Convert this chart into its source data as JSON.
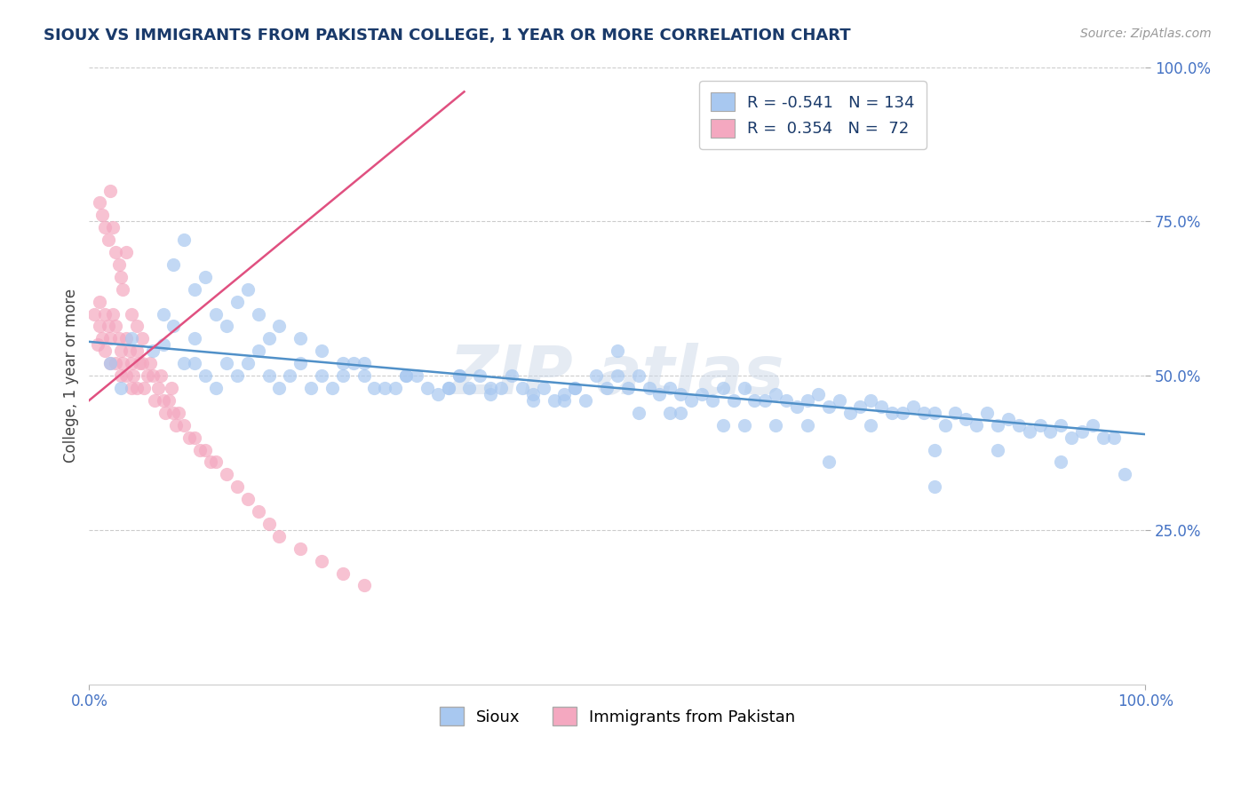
{
  "title": "SIOUX VS IMMIGRANTS FROM PAKISTAN COLLEGE, 1 YEAR OR MORE CORRELATION CHART",
  "source_text": "Source: ZipAtlas.com",
  "ylabel": "College, 1 year or more",
  "xmin": 0.0,
  "xmax": 1.0,
  "ymin": 0.0,
  "ymax": 1.0,
  "ytick_positions": [
    0.25,
    0.5,
    0.75,
    1.0
  ],
  "legend_R_sioux": "-0.541",
  "legend_N_sioux": "134",
  "legend_R_pak": "0.354",
  "legend_N_pak": "72",
  "sioux_color": "#a8c8f0",
  "pak_color": "#f4a8c0",
  "sioux_line_color": "#5090c8",
  "pak_line_color": "#e05080",
  "background_color": "#ffffff",
  "sioux_line_y_start": 0.555,
  "sioux_line_y_end": 0.405,
  "pak_line_x_start": 0.0,
  "pak_line_x_end": 0.355,
  "pak_line_y_start": 0.46,
  "pak_line_y_end": 0.96,
  "sioux_x": [
    0.02,
    0.03,
    0.04,
    0.06,
    0.07,
    0.07,
    0.08,
    0.09,
    0.1,
    0.1,
    0.11,
    0.12,
    0.13,
    0.14,
    0.15,
    0.16,
    0.17,
    0.18,
    0.19,
    0.2,
    0.21,
    0.22,
    0.23,
    0.24,
    0.25,
    0.26,
    0.27,
    0.28,
    0.29,
    0.3,
    0.31,
    0.32,
    0.33,
    0.34,
    0.35,
    0.36,
    0.37,
    0.38,
    0.39,
    0.4,
    0.41,
    0.42,
    0.43,
    0.44,
    0.45,
    0.46,
    0.47,
    0.48,
    0.49,
    0.5,
    0.51,
    0.52,
    0.53,
    0.54,
    0.55,
    0.56,
    0.57,
    0.58,
    0.59,
    0.6,
    0.61,
    0.62,
    0.63,
    0.64,
    0.65,
    0.66,
    0.67,
    0.68,
    0.69,
    0.7,
    0.71,
    0.72,
    0.73,
    0.74,
    0.75,
    0.76,
    0.77,
    0.78,
    0.79,
    0.8,
    0.81,
    0.82,
    0.83,
    0.84,
    0.85,
    0.86,
    0.87,
    0.88,
    0.89,
    0.9,
    0.91,
    0.92,
    0.93,
    0.94,
    0.95,
    0.96,
    0.97,
    0.98,
    0.08,
    0.09,
    0.1,
    0.11,
    0.12,
    0.13,
    0.14,
    0.15,
    0.16,
    0.17,
    0.18,
    0.2,
    0.22,
    0.24,
    0.26,
    0.3,
    0.34,
    0.38,
    0.42,
    0.46,
    0.52,
    0.56,
    0.62,
    0.68,
    0.74,
    0.8,
    0.86,
    0.92,
    0.5,
    0.6,
    0.7,
    0.8,
    0.35,
    0.45,
    0.55,
    0.65
  ],
  "sioux_y": [
    0.52,
    0.48,
    0.56,
    0.54,
    0.6,
    0.55,
    0.58,
    0.52,
    0.56,
    0.52,
    0.5,
    0.48,
    0.52,
    0.5,
    0.52,
    0.54,
    0.5,
    0.48,
    0.5,
    0.52,
    0.48,
    0.5,
    0.48,
    0.5,
    0.52,
    0.5,
    0.48,
    0.48,
    0.48,
    0.5,
    0.5,
    0.48,
    0.47,
    0.48,
    0.5,
    0.48,
    0.5,
    0.47,
    0.48,
    0.5,
    0.48,
    0.47,
    0.48,
    0.46,
    0.47,
    0.48,
    0.46,
    0.5,
    0.48,
    0.5,
    0.48,
    0.5,
    0.48,
    0.47,
    0.48,
    0.47,
    0.46,
    0.47,
    0.46,
    0.48,
    0.46,
    0.48,
    0.46,
    0.46,
    0.47,
    0.46,
    0.45,
    0.46,
    0.47,
    0.45,
    0.46,
    0.44,
    0.45,
    0.46,
    0.45,
    0.44,
    0.44,
    0.45,
    0.44,
    0.44,
    0.42,
    0.44,
    0.43,
    0.42,
    0.44,
    0.42,
    0.43,
    0.42,
    0.41,
    0.42,
    0.41,
    0.42,
    0.4,
    0.41,
    0.42,
    0.4,
    0.4,
    0.34,
    0.68,
    0.72,
    0.64,
    0.66,
    0.6,
    0.58,
    0.62,
    0.64,
    0.6,
    0.56,
    0.58,
    0.56,
    0.54,
    0.52,
    0.52,
    0.5,
    0.48,
    0.48,
    0.46,
    0.48,
    0.44,
    0.44,
    0.42,
    0.42,
    0.42,
    0.38,
    0.38,
    0.36,
    0.54,
    0.42,
    0.36,
    0.32,
    0.5,
    0.46,
    0.44,
    0.42
  ],
  "pak_x": [
    0.005,
    0.008,
    0.01,
    0.01,
    0.012,
    0.015,
    0.015,
    0.018,
    0.02,
    0.02,
    0.022,
    0.025,
    0.025,
    0.028,
    0.03,
    0.03,
    0.032,
    0.035,
    0.035,
    0.038,
    0.04,
    0.04,
    0.042,
    0.045,
    0.045,
    0.048,
    0.05,
    0.052,
    0.055,
    0.058,
    0.06,
    0.062,
    0.065,
    0.068,
    0.07,
    0.072,
    0.075,
    0.078,
    0.08,
    0.082,
    0.085,
    0.09,
    0.095,
    0.1,
    0.105,
    0.11,
    0.115,
    0.12,
    0.13,
    0.14,
    0.15,
    0.16,
    0.17,
    0.18,
    0.2,
    0.22,
    0.24,
    0.26,
    0.01,
    0.012,
    0.015,
    0.018,
    0.02,
    0.022,
    0.025,
    0.028,
    0.03,
    0.032,
    0.035,
    0.04,
    0.045,
    0.05
  ],
  "pak_y": [
    0.6,
    0.55,
    0.58,
    0.62,
    0.56,
    0.6,
    0.54,
    0.58,
    0.56,
    0.52,
    0.6,
    0.58,
    0.52,
    0.56,
    0.54,
    0.5,
    0.52,
    0.56,
    0.5,
    0.54,
    0.52,
    0.48,
    0.5,
    0.54,
    0.48,
    0.52,
    0.52,
    0.48,
    0.5,
    0.52,
    0.5,
    0.46,
    0.48,
    0.5,
    0.46,
    0.44,
    0.46,
    0.48,
    0.44,
    0.42,
    0.44,
    0.42,
    0.4,
    0.4,
    0.38,
    0.38,
    0.36,
    0.36,
    0.34,
    0.32,
    0.3,
    0.28,
    0.26,
    0.24,
    0.22,
    0.2,
    0.18,
    0.16,
    0.78,
    0.76,
    0.74,
    0.72,
    0.8,
    0.74,
    0.7,
    0.68,
    0.66,
    0.64,
    0.7,
    0.6,
    0.58,
    0.56
  ]
}
